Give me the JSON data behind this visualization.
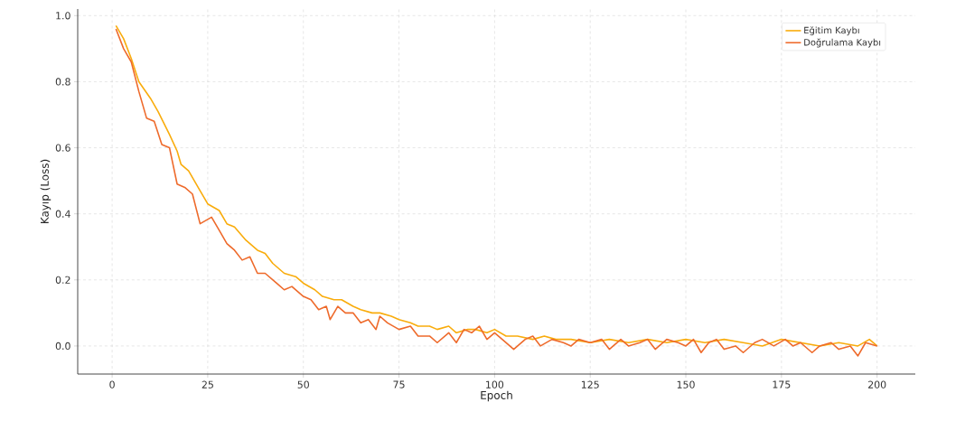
{
  "chart_data": {
    "type": "line",
    "xlabel": "Epoch",
    "ylabel": "Kayıp (Loss)",
    "xlim": [
      -9,
      210
    ],
    "ylim": [
      -0.085,
      1.02
    ],
    "xticks": [
      0,
      25,
      50,
      75,
      100,
      125,
      150,
      175,
      200
    ],
    "yticks": [
      {
        "value": 0,
        "label": "0.0"
      },
      {
        "value": 0.2,
        "label": "0.2"
      },
      {
        "value": 0.4,
        "label": "0.4"
      },
      {
        "value": 0.6,
        "label": "0.6"
      },
      {
        "value": 0.8,
        "label": "0.8"
      },
      {
        "value": 1,
        "label": "1.0"
      }
    ],
    "grid": true,
    "legend": "top right",
    "series": [
      {
        "name": "Eğitim Kaybı",
        "color": "#f9ac0c",
        "x": [
          1,
          3,
          5,
          7,
          10,
          12,
          15,
          17,
          18,
          20,
          23,
          25,
          28,
          30,
          32,
          35,
          38,
          40,
          42,
          45,
          48,
          50,
          53,
          55,
          58,
          60,
          63,
          65,
          68,
          70,
          73,
          75,
          78,
          80,
          83,
          85,
          88,
          90,
          93,
          95,
          98,
          100,
          103,
          106,
          110,
          113,
          116,
          120,
          125,
          130,
          135,
          140,
          145,
          150,
          155,
          160,
          165,
          170,
          175,
          180,
          185,
          190,
          195,
          198,
          200
        ],
        "values": [
          0.97,
          0.93,
          0.87,
          0.8,
          0.75,
          0.71,
          0.64,
          0.59,
          0.55,
          0.53,
          0.47,
          0.43,
          0.41,
          0.37,
          0.36,
          0.32,
          0.29,
          0.28,
          0.25,
          0.22,
          0.21,
          0.19,
          0.17,
          0.15,
          0.14,
          0.14,
          0.12,
          0.11,
          0.1,
          0.1,
          0.09,
          0.08,
          0.07,
          0.06,
          0.06,
          0.05,
          0.06,
          0.04,
          0.05,
          0.05,
          0.04,
          0.05,
          0.03,
          0.03,
          0.02,
          0.03,
          0.02,
          0.02,
          0.01,
          0.02,
          0.01,
          0.02,
          0.01,
          0.02,
          0.01,
          0.02,
          0.01,
          0.0,
          0.02,
          0.01,
          0.0,
          0.01,
          0.0,
          0.02,
          0.0
        ]
      },
      {
        "name": "Doğrulama Kaybı",
        "color": "#ee6a2b",
        "x": [
          1,
          3,
          5,
          7,
          9,
          11,
          13,
          15,
          17,
          19,
          21,
          23,
          26,
          28,
          30,
          32,
          34,
          36,
          38,
          40,
          43,
          45,
          47,
          50,
          52,
          54,
          56,
          57,
          59,
          61,
          63,
          65,
          67,
          69,
          70,
          72,
          75,
          78,
          80,
          83,
          85,
          88,
          90,
          92,
          94,
          96,
          98,
          100,
          102,
          105,
          108,
          110,
          112,
          115,
          118,
          120,
          122,
          125,
          128,
          130,
          133,
          135,
          138,
          140,
          142,
          145,
          148,
          150,
          152,
          154,
          156,
          158,
          160,
          163,
          165,
          168,
          170,
          173,
          176,
          178,
          180,
          183,
          185,
          188,
          190,
          193,
          195,
          197,
          200
        ],
        "values": [
          0.96,
          0.9,
          0.86,
          0.77,
          0.69,
          0.68,
          0.61,
          0.6,
          0.49,
          0.48,
          0.46,
          0.37,
          0.39,
          0.35,
          0.31,
          0.29,
          0.26,
          0.27,
          0.22,
          0.22,
          0.19,
          0.17,
          0.18,
          0.15,
          0.14,
          0.11,
          0.12,
          0.08,
          0.12,
          0.1,
          0.1,
          0.07,
          0.08,
          0.05,
          0.09,
          0.07,
          0.05,
          0.06,
          0.03,
          0.03,
          0.01,
          0.04,
          0.01,
          0.05,
          0.04,
          0.06,
          0.02,
          0.04,
          0.02,
          -0.01,
          0.02,
          0.03,
          0.0,
          0.02,
          0.01,
          0.0,
          0.02,
          0.01,
          0.02,
          -0.01,
          0.02,
          0.0,
          0.01,
          0.02,
          -0.01,
          0.02,
          0.01,
          0.0,
          0.02,
          -0.02,
          0.01,
          0.02,
          -0.01,
          0.0,
          -0.02,
          0.01,
          0.02,
          0.0,
          0.02,
          0.0,
          0.01,
          -0.02,
          0.0,
          0.01,
          -0.01,
          0.0,
          -0.03,
          0.01,
          0.0
        ]
      }
    ]
  }
}
